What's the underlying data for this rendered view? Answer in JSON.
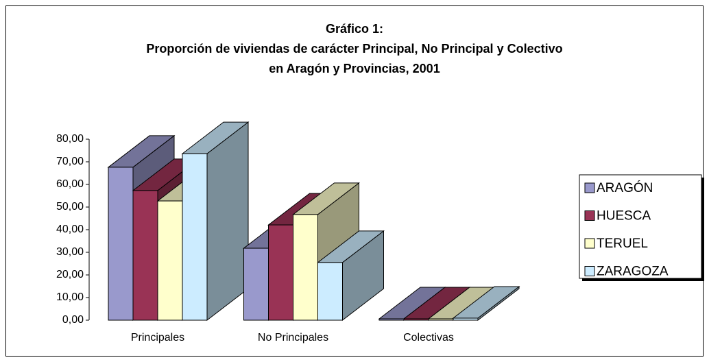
{
  "chart_data": {
    "type": "bar3d",
    "title": [
      "Gráfico 1:",
      "Proporción de viviendas de carácter Principal, No Principal y Colectivo",
      "en Aragón y Provincias, 2001"
    ],
    "categories": [
      "Principales",
      "No Principales",
      "Colectivas"
    ],
    "series": [
      {
        "name": "ARAGÓN",
        "color": "#9999cc",
        "values": [
          67.6,
          31.8,
          0.6
        ]
      },
      {
        "name": "HUESCA",
        "color": "#993355",
        "values": [
          57.3,
          42.1,
          0.6
        ]
      },
      {
        "name": "TERUEL",
        "color": "#ffffcc",
        "values": [
          52.7,
          46.7,
          0.6
        ]
      },
      {
        "name": "ZARAGOZA",
        "color": "#ccecff",
        "values": [
          73.6,
          25.5,
          0.9
        ]
      }
    ],
    "ylim": [
      0,
      80
    ],
    "yticks": [
      {
        "value": 0,
        "label": "0,00"
      },
      {
        "value": 10,
        "label": "10,00"
      },
      {
        "value": 20,
        "label": "20,00"
      },
      {
        "value": 30,
        "label": "30,00"
      },
      {
        "value": 40,
        "label": "40,00"
      },
      {
        "value": 50,
        "label": "50,00"
      },
      {
        "value": 60,
        "label": "60,00"
      },
      {
        "value": 70,
        "label": "70,00"
      },
      {
        "value": 80,
        "label": "80,00"
      }
    ],
    "legend": "right"
  }
}
